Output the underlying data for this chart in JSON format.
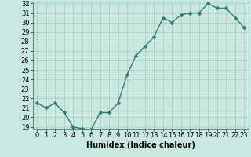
{
  "x": [
    0,
    1,
    2,
    3,
    4,
    5,
    6,
    7,
    8,
    9,
    10,
    11,
    12,
    13,
    14,
    15,
    16,
    17,
    18,
    19,
    20,
    21,
    22,
    23
  ],
  "y": [
    21.5,
    21.0,
    21.5,
    20.5,
    19.0,
    18.8,
    18.7,
    20.5,
    20.5,
    21.5,
    24.5,
    26.5,
    27.5,
    28.5,
    30.5,
    30.0,
    30.8,
    31.0,
    31.0,
    32.0,
    31.5,
    31.5,
    30.5,
    29.5
  ],
  "xlabel": "Humidex (Indice chaleur)",
  "ylim": [
    19,
    32
  ],
  "xlim": [
    0,
    23
  ],
  "yticks": [
    19,
    20,
    21,
    22,
    23,
    24,
    25,
    26,
    27,
    28,
    29,
    30,
    31,
    32
  ],
  "xticks": [
    0,
    1,
    2,
    3,
    4,
    5,
    6,
    7,
    8,
    9,
    10,
    11,
    12,
    13,
    14,
    15,
    16,
    17,
    18,
    19,
    20,
    21,
    22,
    23
  ],
  "line_color": "#2d7d6e",
  "marker_color": "#2d7d6e",
  "bg_color": "#c8e8e0",
  "grid_color": "#b0c8c0",
  "xlabel_fontsize": 7,
  "tick_fontsize": 6,
  "line_width": 1.0,
  "marker_size": 2.5
}
